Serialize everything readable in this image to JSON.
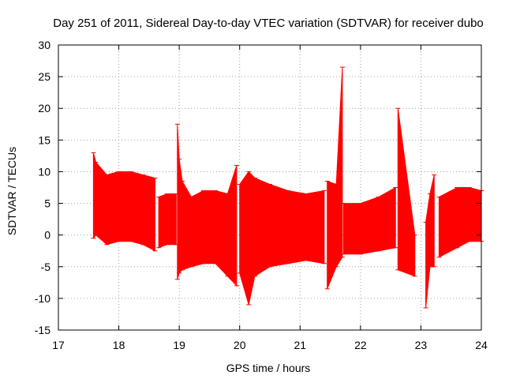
{
  "chart_data": {
    "type": "line",
    "title": "Day 251 of 2011, Sidereal Day-to-day VTEC variation (SDTVAR) for receiver dubo",
    "xlabel": "GPS time / hours",
    "ylabel": "SDTVAR / TECUs",
    "xlim": [
      17,
      24
    ],
    "ylim": [
      -15,
      30
    ],
    "xticks": [
      17,
      18,
      19,
      20,
      21,
      22,
      23,
      24
    ],
    "yticks": [
      -15,
      -10,
      -5,
      0,
      5,
      10,
      15,
      20,
      25,
      30
    ],
    "grid": true,
    "color": "#ff0000",
    "series": [
      {
        "name": "SDTVAR",
        "style": "errorbars",
        "segments": [
          {
            "x": [
              17.58,
              17.62,
              17.8,
              18.0,
              18.2,
              18.4,
              18.6
            ],
            "upper": [
              13.0,
              11.5,
              9.5,
              10.0,
              10.0,
              9.5,
              9.0
            ],
            "lower": [
              -0.5,
              0.0,
              -1.5,
              -1.0,
              -1.0,
              -1.5,
              -2.5
            ]
          },
          {
            "x": [
              18.66,
              18.8,
              18.95
            ],
            "upper": [
              6.0,
              6.5,
              6.5
            ],
            "lower": [
              -2.0,
              -1.5,
              -1.5
            ]
          },
          {
            "x": [
              18.97,
              19.0,
              19.05,
              19.2,
              19.4,
              19.6,
              19.8,
              19.95
            ],
            "upper": [
              17.5,
              12.0,
              8.5,
              6.0,
              7.0,
              7.0,
              6.5,
              11.0
            ],
            "lower": [
              -7.0,
              -6.0,
              -5.5,
              -5.0,
              -4.5,
              -4.5,
              -6.5,
              -8.0
            ]
          },
          {
            "x": [
              20.0,
              20.15,
              20.25,
              20.5,
              20.8,
              21.1,
              21.4
            ],
            "upper": [
              8.0,
              10.0,
              9.0,
              8.0,
              7.0,
              6.5,
              7.0
            ],
            "lower": [
              -6.0,
              -11.0,
              -6.5,
              -5.0,
              -4.5,
              -4.0,
              -4.5
            ]
          },
          {
            "x": [
              21.45,
              21.6,
              21.7
            ],
            "upper": [
              8.5,
              8.0,
              26.5
            ],
            "lower": [
              -8.5,
              -5.0,
              -3.5
            ]
          },
          {
            "x": [
              21.72,
              22.0,
              22.3,
              22.58
            ],
            "upper": [
              5.0,
              5.0,
              6.0,
              7.5
            ],
            "lower": [
              -3.0,
              -3.0,
              -2.5,
              -2.0
            ]
          },
          {
            "x": [
              22.62,
              22.9
            ],
            "upper": [
              20.0,
              0.0
            ],
            "lower": [
              -5.5,
              -6.5
            ]
          },
          {
            "x": [
              23.08,
              23.15,
              23.22
            ],
            "upper": [
              2.0,
              6.5,
              9.5
            ],
            "lower": [
              -11.5,
              -5.0,
              -5.0
            ]
          },
          {
            "x": [
              23.3,
              23.6,
              23.8,
              24.0
            ],
            "upper": [
              6.0,
              7.5,
              7.5,
              7.0
            ],
            "lower": [
              -3.5,
              -2.0,
              -1.0,
              -1.0
            ]
          }
        ]
      }
    ]
  }
}
